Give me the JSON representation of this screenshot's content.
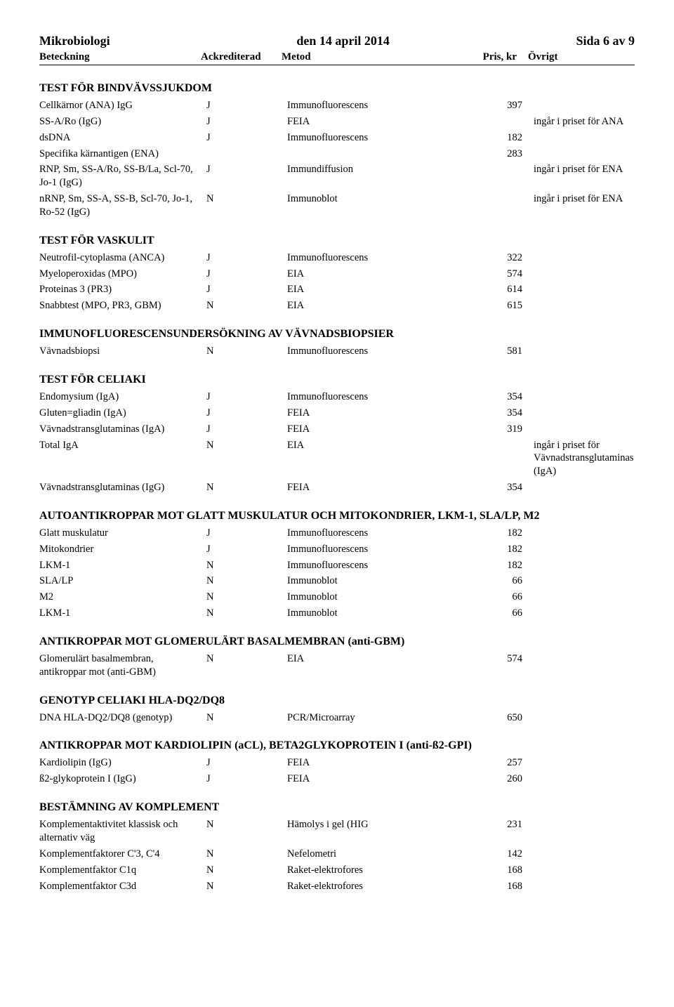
{
  "header": {
    "left": "Mikrobiologi",
    "center": "den 14 april 2014",
    "right": "Sida 6 av 9"
  },
  "columns": {
    "beteckning": "Beteckning",
    "ack": "Ackrediterad",
    "metod": "Metod",
    "pris": "Pris, kr",
    "ovrigt": "Övrigt"
  },
  "sections": [
    {
      "title": "TEST FÖR BINDVÄVSSJUKDOM",
      "rows": [
        {
          "c1": "Cellkärnor (ANA) IgG",
          "c2": "J",
          "c3": "Immunofluorescens",
          "c4": "397",
          "c5": ""
        },
        {
          "c1": "SS-A/Ro (IgG)",
          "c2": "J",
          "c3": "FEIA",
          "c4": "",
          "c5": "ingår i priset för ANA"
        },
        {
          "c1": "dsDNA",
          "c2": "J",
          "c3": "Immunofluorescens",
          "c4": "182",
          "c5": ""
        },
        {
          "c1": "Specifika kärnantigen (ENA)",
          "c2": "",
          "c3": "",
          "c4": "283",
          "c5": ""
        },
        {
          "c1": "RNP, Sm, SS-A/Ro, SS-B/La, Scl-70, Jo-1 (IgG)",
          "c2": "J",
          "c3": "Immundiffusion",
          "c4": "",
          "c5": "ingår i priset för ENA"
        },
        {
          "c1": "nRNP, Sm, SS-A, SS-B, Scl-70, Jo-1, Ro-52 (IgG)",
          "c2": "N",
          "c3": "Immunoblot",
          "c4": "",
          "c5": "ingår i priset för ENA"
        }
      ]
    },
    {
      "title": "TEST FÖR VASKULIT",
      "rows": [
        {
          "c1": "Neutrofil-cytoplasma (ANCA)",
          "c2": "J",
          "c3": "Immunofluorescens",
          "c4": "322",
          "c5": ""
        },
        {
          "c1": "Myeloperoxidas (MPO)",
          "c2": "J",
          "c3": "EIA",
          "c4": "574",
          "c5": ""
        },
        {
          "c1": "Proteinas 3 (PR3)",
          "c2": "J",
          "c3": "EIA",
          "c4": "614",
          "c5": ""
        },
        {
          "c1": "Snabbtest (MPO, PR3, GBM)",
          "c2": "N",
          "c3": "EIA",
          "c4": "615",
          "c5": ""
        }
      ]
    },
    {
      "title": "IMMUNOFLUORESCENSUNDERSÖKNING AV  VÄVNADSBIOPSIER",
      "rows": [
        {
          "c1": "Vävnadsbiopsi",
          "c2": "N",
          "c3": "Immunofluorescens",
          "c4": "581",
          "c5": ""
        }
      ]
    },
    {
      "title": "TEST FÖR CELIAKI",
      "rows": [
        {
          "c1": "Endomysium  (IgA)",
          "c2": "J",
          "c3": "Immunofluorescens",
          "c4": "354",
          "c5": ""
        },
        {
          "c1": "Gluten=gliadin  (IgA)",
          "c2": "J",
          "c3": "FEIA",
          "c4": "354",
          "c5": ""
        },
        {
          "c1": "Vävnadstransglutaminas (IgA)",
          "c2": "J",
          "c3": "FEIA",
          "c4": "319",
          "c5": ""
        },
        {
          "c1": "Total IgA",
          "c2": "N",
          "c3": "EIA",
          "c4": "",
          "c5": "ingår i priset för Vävnadstransglutaminas (IgA)"
        },
        {
          "c1": "Vävnadstransglutaminas (IgG)",
          "c2": "N",
          "c3": "FEIA",
          "c4": "354",
          "c5": ""
        }
      ]
    },
    {
      "title": "AUTOANTIKROPPAR MOT GLATT MUSKULATUR OCH MITOKONDRIER, LKM-1, SLA/LP, M2",
      "rows": [
        {
          "c1": "Glatt muskulatur",
          "c2": "J",
          "c3": "Immunofluorescens",
          "c4": "182",
          "c5": ""
        },
        {
          "c1": "Mitokondrier",
          "c2": "J",
          "c3": "Immunofluorescens",
          "c4": "182",
          "c5": ""
        },
        {
          "c1": "LKM-1",
          "c2": "N",
          "c3": "Immunofluorescens",
          "c4": "182",
          "c5": ""
        },
        {
          "c1": "SLA/LP",
          "c2": "N",
          "c3": "Immunoblot",
          "c4": "66",
          "c5": ""
        },
        {
          "c1": "M2",
          "c2": "N",
          "c3": "Immunoblot",
          "c4": "66",
          "c5": ""
        },
        {
          "c1": "LKM-1",
          "c2": "N",
          "c3": "Immunoblot",
          "c4": "66",
          "c5": ""
        }
      ]
    },
    {
      "title": "ANTIKROPPAR MOT GLOMERULÄRT BASALMEMBRAN (anti-GBM)",
      "rows": [
        {
          "c1": "Glomerulärt basalmembran, antikroppar mot (anti-GBM)",
          "c2": "N",
          "c3": "EIA",
          "c4": "574",
          "c5": ""
        }
      ]
    },
    {
      "title": "GENOTYP CELIAKI HLA-DQ2/DQ8",
      "rows": [
        {
          "c1": "DNA HLA-DQ2/DQ8 (genotyp)",
          "c2": "N",
          "c3": "PCR/Microarray",
          "c4": "650",
          "c5": ""
        }
      ]
    },
    {
      "title": "ANTIKROPPAR MOT KARDIOLIPIN (aCL), BETA2GLYKOPROTEIN I (anti-ß2-GPI)",
      "rows": [
        {
          "c1": "Kardiolipin (IgG)",
          "c2": "J",
          "c3": "FEIA",
          "c4": "257",
          "c5": ""
        },
        {
          "c1": "ß2-glykoprotein I (IgG)",
          "c2": "J",
          "c3": "FEIA",
          "c4": "260",
          "c5": ""
        }
      ]
    },
    {
      "title": "BESTÄMNING AV KOMPLEMENT",
      "rows": [
        {
          "c1": "Komplementaktivitet klassisk och alternativ väg",
          "c2": "N",
          "c3": "Hämolys  i gel (HIG",
          "c4": "231",
          "c5": ""
        },
        {
          "c1": "Komplementfaktorer C'3, C'4",
          "c2": "N",
          "c3": "Nefelometri",
          "c4": "142",
          "c5": ""
        },
        {
          "c1": "Komplementfaktor C1q",
          "c2": "N",
          "c3": "Raket-elektrofores",
          "c4": "168",
          "c5": ""
        },
        {
          "c1": "Komplementfaktor C3d",
          "c2": "N",
          "c3": "Raket-elektrofores",
          "c4": "168",
          "c5": ""
        }
      ]
    }
  ]
}
